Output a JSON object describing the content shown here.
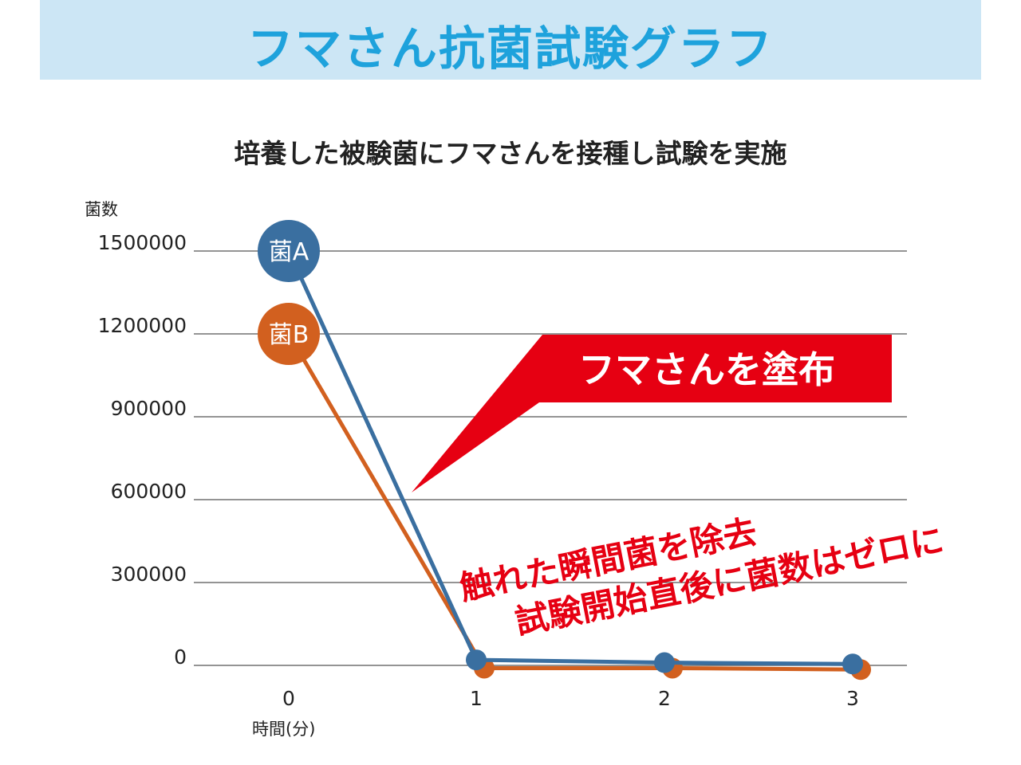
{
  "header": {
    "title": "フマさん抗菌試験グラフ"
  },
  "subtitle": "培養した被験菌にフマさんを接種し試験を実施",
  "annotations": {
    "callout": "フマさんを塗布",
    "line1": "触れた瞬間菌を除去",
    "line2": "試験開始直後に菌数はゼロに"
  },
  "colors": {
    "banner_bg": "#cce6f5",
    "banner_text": "#1ea2dc",
    "series_a": "#3a6fa0",
    "series_b": "#d2601f",
    "callout_red": "#e60012"
  },
  "chart_data": {
    "type": "line",
    "ylabel": "菌数",
    "xlabel": "時間(分)",
    "x": [
      0,
      1,
      2,
      3
    ],
    "x_tick_labels": [
      "0",
      "1",
      "2",
      "3"
    ],
    "y_ticks": [
      0,
      300000,
      600000,
      900000,
      1200000,
      1500000
    ],
    "y_tick_labels": [
      "0",
      "300000",
      "600000",
      "900000",
      "1200000",
      "1500000"
    ],
    "ylim": [
      0,
      1500000
    ],
    "grid": true,
    "series": [
      {
        "name": "菌A",
        "values": [
          1500000,
          20000,
          10000,
          5000
        ]
      },
      {
        "name": "菌B",
        "values": [
          1200000,
          -10000,
          -10000,
          -15000
        ]
      }
    ]
  }
}
